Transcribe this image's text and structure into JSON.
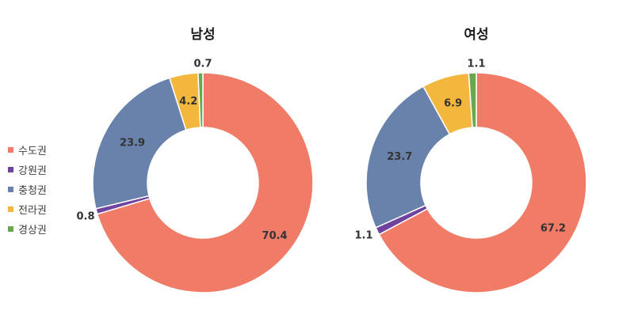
{
  "chart_data": [
    {
      "type": "pie",
      "title": "남성",
      "categories": [
        "수도권",
        "강원권",
        "충청권",
        "전라권",
        "경상권"
      ],
      "values": [
        70.4,
        0.8,
        23.9,
        4.2,
        0.7
      ],
      "labels": [
        "70.4",
        "0.8",
        "23.9",
        "4.2",
        "0.7"
      ]
    },
    {
      "type": "pie",
      "title": "여성",
      "categories": [
        "수도권",
        "강원권",
        "충청권",
        "전라권",
        "경상권"
      ],
      "values": [
        67.2,
        1.1,
        23.7,
        6.9,
        1.1
      ],
      "labels": [
        "67.2",
        "1.1",
        "23.7",
        "6.9",
        "1.1"
      ]
    }
  ],
  "legend": {
    "placement": "left",
    "items": [
      {
        "label": "수도권",
        "color": "#F07B67"
      },
      {
        "label": "강원권",
        "color": "#7042A0"
      },
      {
        "label": "충청권",
        "color": "#6882AB"
      },
      {
        "label": "전라권",
        "color": "#F4B73D"
      },
      {
        "label": "경상권",
        "color": "#6AA84F"
      }
    ]
  }
}
